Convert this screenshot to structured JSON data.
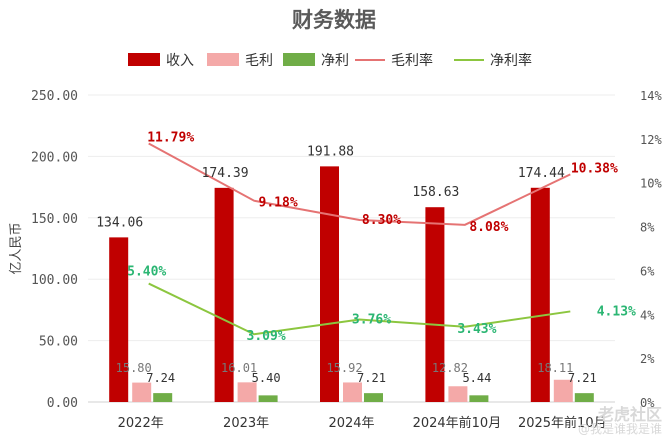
{
  "chart_data": {
    "type": "bar",
    "title": "财务数据",
    "ylabel": "亿人民币",
    "categories": [
      "2022年",
      "2023年",
      "2024年",
      "2024年前10月",
      "2025年前10月"
    ],
    "ylim": [
      0,
      250
    ],
    "y2lim": [
      0,
      14
    ],
    "yticks": [
      "0.00",
      "50.00",
      "100.00",
      "150.00",
      "200.00",
      "250.00"
    ],
    "y2ticks": [
      "0%",
      "2%",
      "4%",
      "6%",
      "8%",
      "10%",
      "12%",
      "14%"
    ],
    "legend_position": "top",
    "bar_series": [
      {
        "name": "收入",
        "color": "#c00000",
        "values": [
          134.06,
          174.39,
          191.88,
          158.63,
          174.44
        ],
        "labels": [
          "134.06",
          "174.39",
          "191.88",
          "158.63",
          "174.44"
        ]
      },
      {
        "name": "毛利",
        "color": "#f4a9a8",
        "values": [
          15.8,
          16.01,
          15.92,
          12.82,
          18.11
        ],
        "labels": [
          "15.80",
          "16.01",
          "15.92",
          "12.82",
          "18.11"
        ]
      },
      {
        "name": "净利",
        "color": "#70ad47",
        "values": [
          7.24,
          5.4,
          7.21,
          5.44,
          7.21
        ],
        "labels": [
          "7.24",
          "5.40",
          "7.21",
          "5.44",
          "7.21"
        ]
      }
    ],
    "line_series": [
      {
        "name": "毛利率",
        "color": "#e57373",
        "label_color": "#c00000",
        "values": [
          11.79,
          9.18,
          8.3,
          8.08,
          10.38
        ],
        "labels": [
          "11.79%",
          "9.18%",
          "8.30%",
          "8.08%",
          "10.38%"
        ]
      },
      {
        "name": "净利率",
        "color": "#8cc63f",
        "label_color": "#2bb673",
        "values": [
          5.4,
          3.09,
          3.76,
          3.43,
          4.13
        ],
        "labels": [
          "5.40%",
          "3.09%",
          "3.76%",
          "3.43%",
          "4.13%"
        ]
      }
    ]
  },
  "watermark": {
    "logo": "老虎社区",
    "handle": "@我是谁我是谁"
  }
}
